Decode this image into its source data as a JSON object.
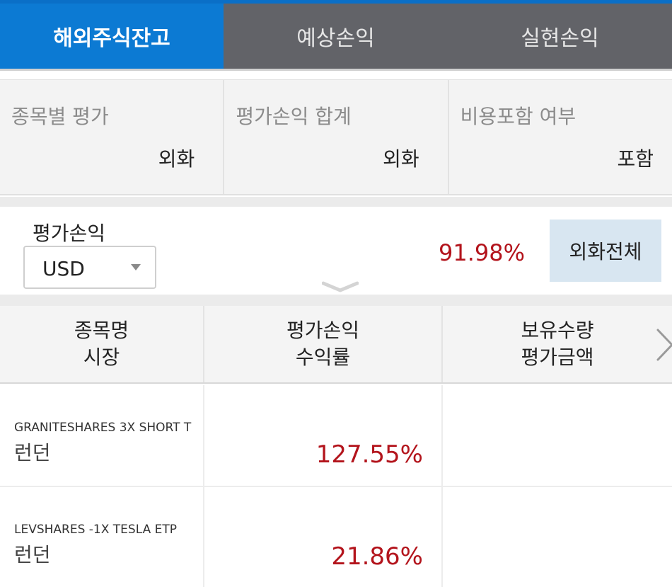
{
  "tabs": [
    {
      "label": "해외주식잔고",
      "active": true
    },
    {
      "label": "예상손익",
      "active": false
    },
    {
      "label": "실현손익",
      "active": false
    }
  ],
  "settings": [
    {
      "label": "종목별 평가",
      "value": "외화"
    },
    {
      "label": "평가손익 합계",
      "value": "외화"
    },
    {
      "label": "비용포함 여부",
      "value": "포함"
    }
  ],
  "summary": {
    "label": "평가손익",
    "currency": "USD",
    "rate": "91.98%",
    "fx_button": "외화전체"
  },
  "table": {
    "headers": [
      {
        "line1": "종목명",
        "line2": "시장"
      },
      {
        "line1": "평가손익",
        "line2": "수익률"
      },
      {
        "line1": "보유수량",
        "line2": "평가금액"
      }
    ],
    "rows": [
      {
        "symbol": "GRANITESHARES 3X SHORT T",
        "market": "런던",
        "return": "127.55%"
      },
      {
        "symbol": "LEVSHARES -1X TESLA ETP",
        "market": "런던",
        "return": "21.86%"
      }
    ]
  },
  "colors": {
    "active_tab": "#0c7ad3",
    "inactive_tab": "#626368",
    "negative_red": "#b3141c",
    "fx_button_bg": "#d8e6f1"
  },
  "icons": {
    "dropdown": "caret-down-icon",
    "collapse": "chevron-down-icon",
    "scroll_right": "chevron-right-icon"
  }
}
